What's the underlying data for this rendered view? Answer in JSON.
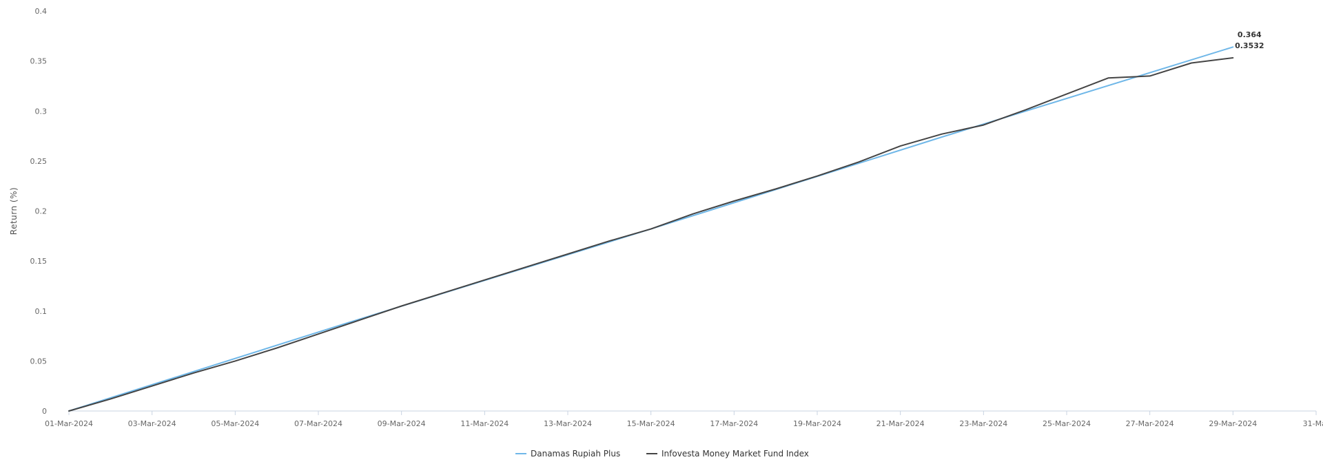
{
  "chart_data": {
    "type": "line",
    "ylabel": "Return (%)",
    "ylim": [
      0,
      0.4
    ],
    "yticks": [
      "0",
      "0.05",
      "0.1",
      "0.15",
      "0.2",
      "0.25",
      "0.3",
      "0.35",
      "0.4"
    ],
    "xlim": [
      "2024-03-01",
      "2024-03-31"
    ],
    "xticks": [
      {
        "date": "2024-03-01",
        "label": "01-Mar-2024"
      },
      {
        "date": "2024-03-03",
        "label": "03-Mar-2024"
      },
      {
        "date": "2024-03-05",
        "label": "05-Mar-2024"
      },
      {
        "date": "2024-03-07",
        "label": "07-Mar-2024"
      },
      {
        "date": "2024-03-09",
        "label": "09-Mar-2024"
      },
      {
        "date": "2024-03-11",
        "label": "11-Mar-2024"
      },
      {
        "date": "2024-03-13",
        "label": "13-Mar-2024"
      },
      {
        "date": "2024-03-15",
        "label": "15-Mar-2024"
      },
      {
        "date": "2024-03-17",
        "label": "17-Mar-2024"
      },
      {
        "date": "2024-03-19",
        "label": "19-Mar-2024"
      },
      {
        "date": "2024-03-21",
        "label": "21-Mar-2024"
      },
      {
        "date": "2024-03-23",
        "label": "23-Mar-2024"
      },
      {
        "date": "2024-03-25",
        "label": "25-Mar-2024"
      },
      {
        "date": "2024-03-27",
        "label": "27-Mar-2024"
      },
      {
        "date": "2024-03-29",
        "label": "29-Mar-2024"
      },
      {
        "date": "2024-03-31",
        "label": "31-Mar"
      }
    ],
    "grid": false,
    "legend_position": "bottom-center",
    "series": [
      {
        "name": "Danamas Rupiah Plus",
        "color": "#6fb7e8",
        "end_label": "0.364",
        "points": [
          {
            "x": "2024-03-01",
            "y": 0.0
          },
          {
            "x": "2024-03-08",
            "y": 0.092
          },
          {
            "x": "2024-03-15",
            "y": 0.182
          },
          {
            "x": "2024-03-22",
            "y": 0.274
          },
          {
            "x": "2024-03-29",
            "y": 0.364
          }
        ]
      },
      {
        "name": "Infovesta Money Market Fund Index",
        "color": "#444444",
        "end_label": "0.3532",
        "points": [
          {
            "x": "2024-03-01",
            "y": 0.0
          },
          {
            "x": "2024-03-02",
            "y": 0.012
          },
          {
            "x": "2024-03-03",
            "y": 0.025
          },
          {
            "x": "2024-03-04",
            "y": 0.038
          },
          {
            "x": "2024-03-05",
            "y": 0.05
          },
          {
            "x": "2024-03-06",
            "y": 0.063
          },
          {
            "x": "2024-03-07",
            "y": 0.077
          },
          {
            "x": "2024-03-08",
            "y": 0.091
          },
          {
            "x": "2024-03-09",
            "y": 0.105
          },
          {
            "x": "2024-03-10",
            "y": 0.118
          },
          {
            "x": "2024-03-11",
            "y": 0.131
          },
          {
            "x": "2024-03-12",
            "y": 0.144
          },
          {
            "x": "2024-03-13",
            "y": 0.157
          },
          {
            "x": "2024-03-14",
            "y": 0.17
          },
          {
            "x": "2024-03-15",
            "y": 0.182
          },
          {
            "x": "2024-03-16",
            "y": 0.197
          },
          {
            "x": "2024-03-17",
            "y": 0.21
          },
          {
            "x": "2024-03-18",
            "y": 0.222
          },
          {
            "x": "2024-03-19",
            "y": 0.235
          },
          {
            "x": "2024-03-20",
            "y": 0.249
          },
          {
            "x": "2024-03-21",
            "y": 0.265
          },
          {
            "x": "2024-03-22",
            "y": 0.277
          },
          {
            "x": "2024-03-23",
            "y": 0.286
          },
          {
            "x": "2024-03-24",
            "y": 0.301
          },
          {
            "x": "2024-03-25",
            "y": 0.317
          },
          {
            "x": "2024-03-26",
            "y": 0.333
          },
          {
            "x": "2024-03-27",
            "y": 0.335
          },
          {
            "x": "2024-03-28",
            "y": 0.348
          },
          {
            "x": "2024-03-29",
            "y": 0.3532
          }
        ]
      }
    ]
  }
}
